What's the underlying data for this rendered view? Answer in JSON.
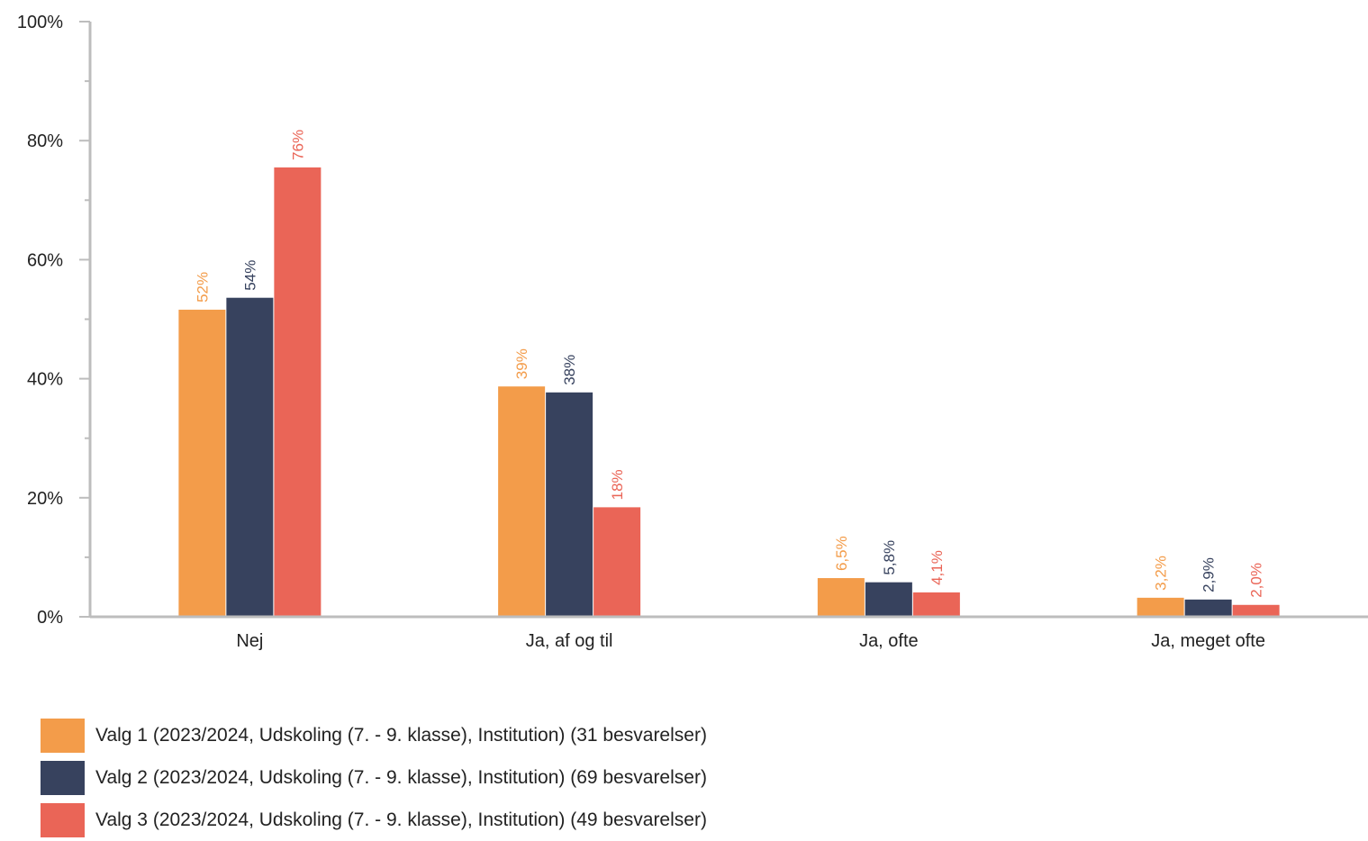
{
  "chart_data": {
    "type": "bar",
    "categories": [
      "Nej",
      "Ja, af og til",
      "Ja, ofte",
      "Ja, meget ofte"
    ],
    "ylim": [
      0,
      100
    ],
    "yticks": [
      "0%",
      "20%",
      "40%",
      "60%",
      "80%",
      "100%"
    ],
    "grid": false,
    "legend_position": "bottom",
    "series": [
      {
        "name": "Valg 1 (2023/2024, Udskoling (7. - 9. klasse), Institution) (31 besvarelser)",
        "color": "#F39C4A",
        "values": [
          51.6,
          38.7,
          6.5,
          3.2
        ],
        "labels": [
          "52%",
          "39%",
          "6,5%",
          "3,2%"
        ]
      },
      {
        "name": "Valg 2 (2023/2024, Udskoling (7. - 9. klasse), Institution) (69 besvarelser)",
        "color": "#37425E",
        "values": [
          53.6,
          37.7,
          5.8,
          2.9
        ],
        "labels": [
          "54%",
          "38%",
          "5,8%",
          "2,9%"
        ]
      },
      {
        "name": "Valg 3 (2023/2024, Udskoling (7. - 9. klasse), Institution) (49 besvarelser)",
        "color": "#EA6557",
        "values": [
          75.5,
          18.4,
          4.1,
          2.0
        ],
        "labels": [
          "76%",
          "18%",
          "4,1%",
          "2,0%"
        ]
      }
    ]
  }
}
